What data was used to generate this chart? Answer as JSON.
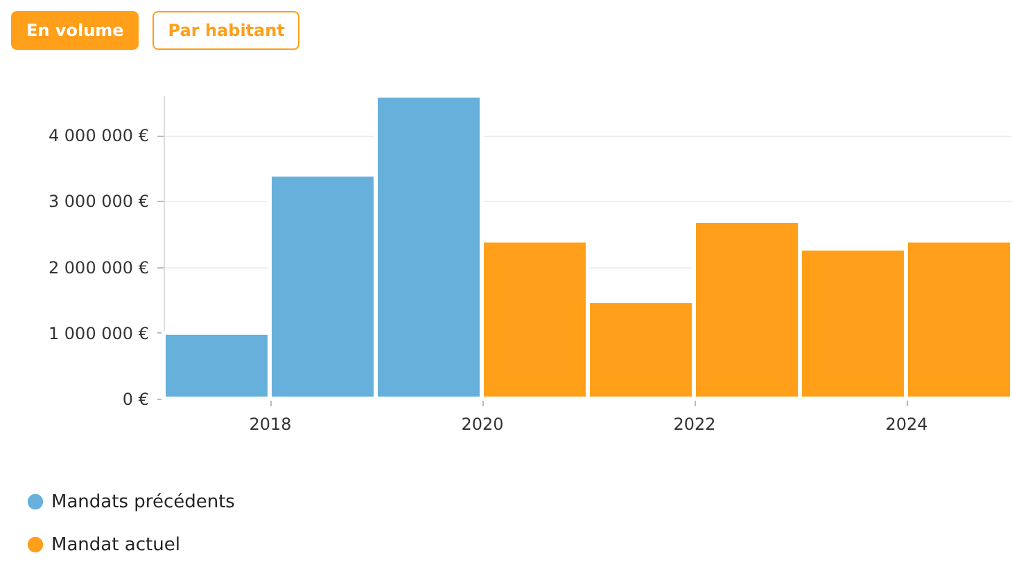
{
  "chart_data": {
    "type": "bar",
    "annotations": [
      "En volume",
      "Par habitant"
    ],
    "x": [
      2017,
      2018,
      2019,
      2020,
      2021,
      2022,
      2023,
      2024
    ],
    "series": [
      {
        "name": "Mandats précédents",
        "color": "#67b0dc",
        "values": [
          1000000,
          3400000,
          4600000,
          null,
          null,
          null,
          null,
          null
        ]
      },
      {
        "name": "Mandat actuel",
        "color": "#ff9f1a",
        "values": [
          null,
          null,
          null,
          2400000,
          1480000,
          2700000,
          2280000,
          2400000
        ]
      }
    ],
    "xlim": [
      2017,
      2025
    ],
    "xticks": [
      2018,
      2020,
      2022,
      2024
    ],
    "ylim": [
      0,
      4600000
    ],
    "yticks": [
      {
        "value": 0,
        "label": "0 €"
      },
      {
        "value": 1000000,
        "label": "1 000 000 €"
      },
      {
        "value": 2000000,
        "label": "2 000 000 €"
      },
      {
        "value": 3000000,
        "label": "3 000 000 €"
      },
      {
        "value": 4000000,
        "label": "4 000 000 €"
      }
    ],
    "grid": "y",
    "legend": "bottom left"
  }
}
